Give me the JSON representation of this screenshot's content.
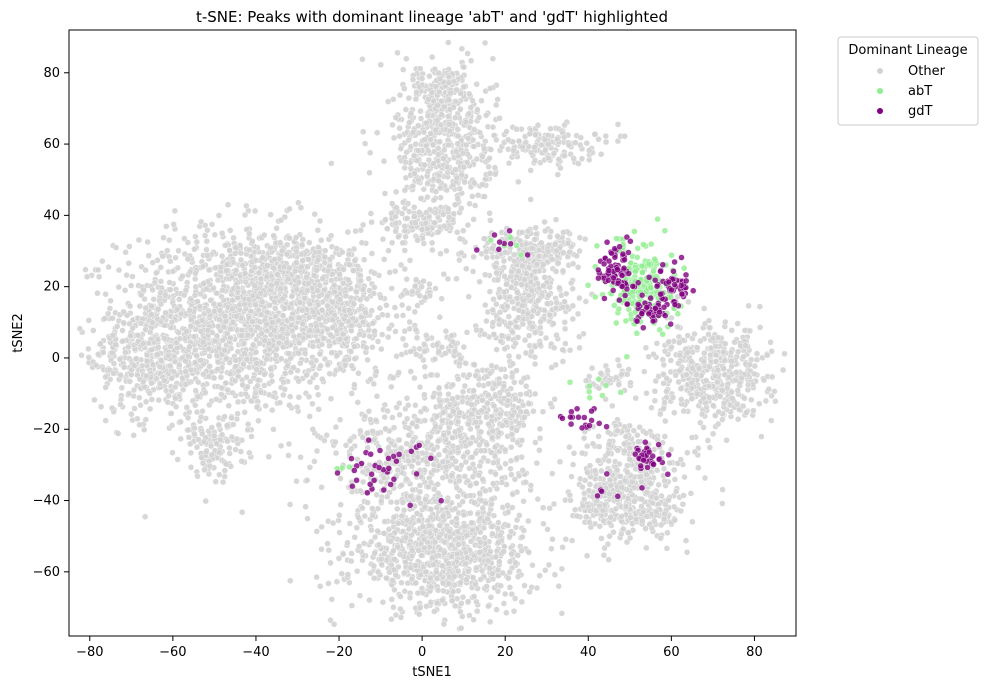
{
  "chart_data": {
    "type": "scatter",
    "title": "t-SNE: Peaks with dominant lineage 'abT' and 'gdT' highlighted",
    "xlabel": "tSNE1",
    "ylabel": "tSNE2",
    "xlim": [
      -85,
      90
    ],
    "ylim": [
      -78,
      92
    ],
    "xticks": [
      -80,
      -60,
      -40,
      -20,
      0,
      20,
      40,
      60,
      80
    ],
    "yticks": [
      -60,
      -40,
      -20,
      0,
      20,
      40,
      60,
      80
    ],
    "xtick_labels": [
      "−80",
      "−60",
      "−40",
      "−20",
      "0",
      "20",
      "40",
      "60",
      "80"
    ],
    "ytick_labels": [
      "−60",
      "−40",
      "−20",
      "0",
      "20",
      "40",
      "60",
      "80"
    ],
    "grid": false,
    "legend": {
      "title": "Dominant Lineage",
      "placement": "outside-upper-right",
      "entries": [
        "Other",
        "abT",
        "gdT"
      ]
    },
    "colors": {
      "Other": "#d3d3d3",
      "abT": "#90ee90",
      "gdT": "#800080"
    },
    "series": [
      {
        "name": "Other",
        "clusters": [
          {
            "x": -45,
            "y": 10,
            "sx": 14,
            "sy": 13,
            "n": 1400
          },
          {
            "x": -65,
            "y": 0,
            "sx": 7,
            "sy": 8,
            "n": 350
          },
          {
            "x": -30,
            "y": 22,
            "sx": 9,
            "sy": 7,
            "n": 400
          },
          {
            "x": -20,
            "y": 10,
            "sx": 8,
            "sy": 8,
            "n": 350
          },
          {
            "x": -50,
            "y": -25,
            "sx": 4,
            "sy": 4,
            "n": 120
          },
          {
            "x": 5,
            "y": -55,
            "sx": 11,
            "sy": 8,
            "n": 900
          },
          {
            "x": 0,
            "y": -30,
            "sx": 12,
            "sy": 9,
            "n": 500
          },
          {
            "x": 15,
            "y": -15,
            "sx": 7,
            "sy": 7,
            "n": 350
          },
          {
            "x": 5,
            "y": 60,
            "sx": 6,
            "sy": 11,
            "n": 520
          },
          {
            "x": 5,
            "y": 75,
            "sx": 3,
            "sy": 4,
            "n": 100
          },
          {
            "x": 0,
            "y": 38,
            "sx": 5,
            "sy": 3,
            "n": 120
          },
          {
            "x": 28,
            "y": 60,
            "sx": 7,
            "sy": 3,
            "n": 150
          },
          {
            "x": 25,
            "y": 18,
            "sx": 6,
            "sy": 9,
            "n": 420
          },
          {
            "x": 27,
            "y": 30,
            "sx": 6,
            "sy": 3,
            "n": 150
          },
          {
            "x": 50,
            "y": -40,
            "sx": 7,
            "sy": 6,
            "n": 420
          },
          {
            "x": 50,
            "y": -25,
            "sx": 5,
            "sy": 4,
            "n": 120
          },
          {
            "x": 70,
            "y": -5,
            "sx": 7,
            "sy": 7,
            "n": 450
          },
          {
            "x": 5,
            "y": 2,
            "sx": 4,
            "sy": 3,
            "n": 60
          },
          {
            "x": 0,
            "y": 20,
            "sx": 2,
            "sy": 2,
            "n": 30
          },
          {
            "x": 45,
            "y": -5,
            "sx": 3,
            "sy": 2,
            "n": 40
          }
        ]
      },
      {
        "name": "abT",
        "clusters": [
          {
            "x": 53,
            "y": 20,
            "sx": 4,
            "sy": 6,
            "n": 220
          },
          {
            "x": 43,
            "y": -8,
            "sx": 3,
            "sy": 2,
            "n": 8
          },
          {
            "x": 20,
            "y": 32,
            "sx": 2,
            "sy": 1,
            "n": 5
          },
          {
            "x": -18,
            "y": -30,
            "sx": 2,
            "sy": 1,
            "n": 3
          }
        ]
      },
      {
        "name": "gdT",
        "clusters": [
          {
            "x": 47,
            "y": 24,
            "sx": 2,
            "sy": 4,
            "n": 80
          },
          {
            "x": 60,
            "y": 20,
            "sx": 3,
            "sy": 3,
            "n": 60
          },
          {
            "x": 55,
            "y": 13,
            "sx": 3,
            "sy": 2,
            "n": 35
          },
          {
            "x": 55,
            "y": -28,
            "sx": 2,
            "sy": 2,
            "n": 35
          },
          {
            "x": -10,
            "y": -30,
            "sx": 6,
            "sy": 4,
            "n": 35
          },
          {
            "x": 40,
            "y": -18,
            "sx": 3,
            "sy": 3,
            "n": 18
          },
          {
            "x": 20,
            "y": 32,
            "sx": 4,
            "sy": 2,
            "n": 8
          },
          {
            "x": 45,
            "y": -36,
            "sx": 3,
            "sy": 2,
            "n": 6
          }
        ]
      }
    ]
  }
}
